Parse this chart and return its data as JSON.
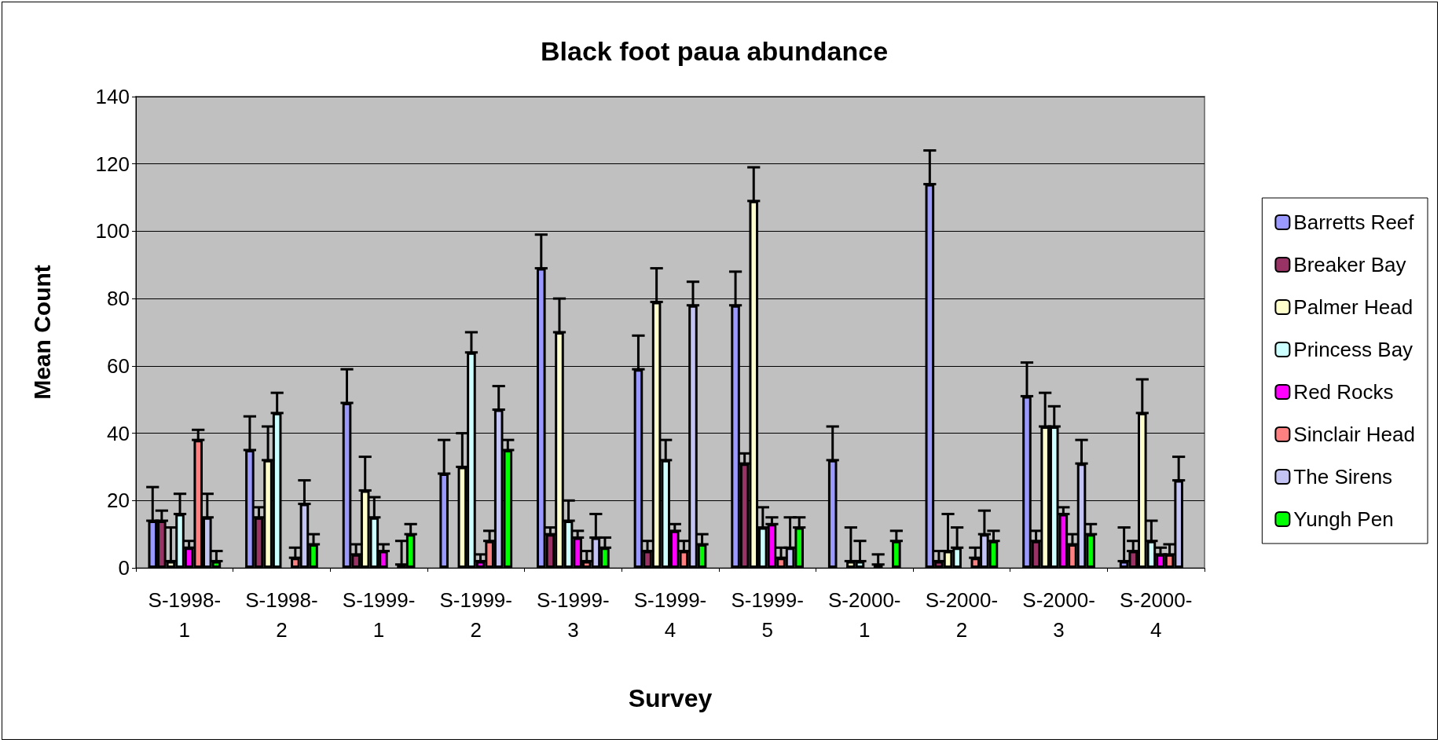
{
  "chart_data": {
    "type": "bar",
    "title": "Black foot paua abundance",
    "xlabel": "Survey",
    "ylabel": "Mean Count",
    "categories": [
      "S-1998-1",
      "S-1998-2",
      "S-1999-1",
      "S-1999-2",
      "S-1999-3",
      "S-1999-4",
      "S-1999-5",
      "S-2000-1",
      "S-2000-2",
      "S-2000-3",
      "S-2000-4"
    ],
    "ylim": [
      0,
      140
    ],
    "yticks": [
      0,
      20,
      40,
      60,
      80,
      100,
      120,
      140
    ],
    "grid": "y",
    "legend": "right",
    "series": [
      {
        "name": "Barretts Reef",
        "color": "#9999ff",
        "values": [
          14,
          35,
          49,
          28,
          89,
          59,
          78,
          32,
          114,
          51,
          2
        ],
        "errors": [
          [
            14,
            24
          ],
          [
            35,
            45
          ],
          [
            49,
            59
          ],
          [
            28,
            38
          ],
          [
            89,
            99
          ],
          [
            59,
            69
          ],
          [
            78,
            88
          ],
          [
            32,
            42
          ],
          [
            114,
            124
          ],
          [
            51,
            61
          ],
          [
            2,
            12
          ]
        ]
      },
      {
        "name": "Breaker Bay",
        "color": "#993366",
        "values": [
          14,
          15,
          4,
          null,
          10,
          5,
          31,
          null,
          2,
          8,
          5
        ],
        "errors": [
          [
            14,
            17
          ],
          [
            15,
            18
          ],
          [
            4,
            7
          ],
          null,
          [
            10,
            12
          ],
          [
            5,
            8
          ],
          [
            31,
            34
          ],
          null,
          [
            2,
            5
          ],
          [
            8,
            11
          ],
          [
            5,
            8
          ]
        ]
      },
      {
        "name": "Palmer Head",
        "color": "#ffffcc",
        "values": [
          2,
          32,
          23,
          30,
          70,
          79,
          109,
          2,
          5,
          42,
          46
        ],
        "errors": [
          [
            2,
            12
          ],
          [
            32,
            42
          ],
          [
            23,
            33
          ],
          [
            30,
            40
          ],
          [
            70,
            80
          ],
          [
            79,
            89
          ],
          [
            109,
            119
          ],
          [
            2,
            12
          ],
          [
            5,
            16
          ],
          [
            42,
            52
          ],
          [
            46,
            56
          ]
        ]
      },
      {
        "name": "Princess Bay",
        "color": "#ccffff",
        "values": [
          16,
          46,
          15,
          64,
          14,
          32,
          12,
          2,
          6,
          42,
          8
        ],
        "errors": [
          [
            16,
            22
          ],
          [
            46,
            52
          ],
          [
            15,
            21
          ],
          [
            64,
            70
          ],
          [
            14,
            20
          ],
          [
            32,
            38
          ],
          [
            12,
            18
          ],
          [
            2,
            8
          ],
          [
            6,
            12
          ],
          [
            42,
            48
          ],
          [
            8,
            14
          ]
        ]
      },
      {
        "name": "Red Rocks",
        "color": "#ff00ff",
        "values": [
          6,
          null,
          5,
          2,
          9,
          11,
          13,
          null,
          null,
          16,
          4
        ],
        "errors": [
          [
            6,
            8
          ],
          null,
          [
            5,
            7
          ],
          [
            2,
            4
          ],
          [
            9,
            11
          ],
          [
            11,
            13
          ],
          [
            13,
            15
          ],
          null,
          null,
          [
            16,
            18
          ],
          [
            4,
            6
          ]
        ]
      },
      {
        "name": "Sinclair Head",
        "color": "#ff8080",
        "values": [
          38,
          3,
          null,
          8,
          2,
          5,
          3,
          1,
          3,
          7,
          4
        ],
        "errors": [
          [
            38,
            41
          ],
          [
            3,
            6
          ],
          null,
          [
            8,
            11
          ],
          [
            2,
            5
          ],
          [
            5,
            8
          ],
          [
            3,
            6
          ],
          [
            1,
            4
          ],
          [
            3,
            6
          ],
          [
            7,
            10
          ],
          [
            4,
            7
          ]
        ]
      },
      {
        "name": "The Sirens",
        "color": "#c4c4f4",
        "values": [
          15,
          19,
          1,
          47,
          9,
          78,
          6,
          null,
          10,
          31,
          26
        ],
        "errors": [
          [
            15,
            22
          ],
          [
            19,
            26
          ],
          [
            1,
            8
          ],
          [
            47,
            54
          ],
          [
            9,
            16
          ],
          [
            78,
            85
          ],
          [
            6,
            15
          ],
          null,
          [
            10,
            17
          ],
          [
            31,
            38
          ],
          [
            26,
            33
          ]
        ]
      },
      {
        "name": "Yungh Pen",
        "color": "#00ff00",
        "values": [
          2,
          7,
          10,
          35,
          6,
          7,
          12,
          8,
          8,
          10,
          null
        ],
        "errors": [
          [
            2,
            5
          ],
          [
            7,
            10
          ],
          [
            10,
            13
          ],
          [
            35,
            38
          ],
          [
            6,
            9
          ],
          [
            7,
            10
          ],
          [
            12,
            15
          ],
          [
            8,
            11
          ],
          [
            8,
            11
          ],
          [
            10,
            13
          ],
          null
        ]
      }
    ]
  }
}
